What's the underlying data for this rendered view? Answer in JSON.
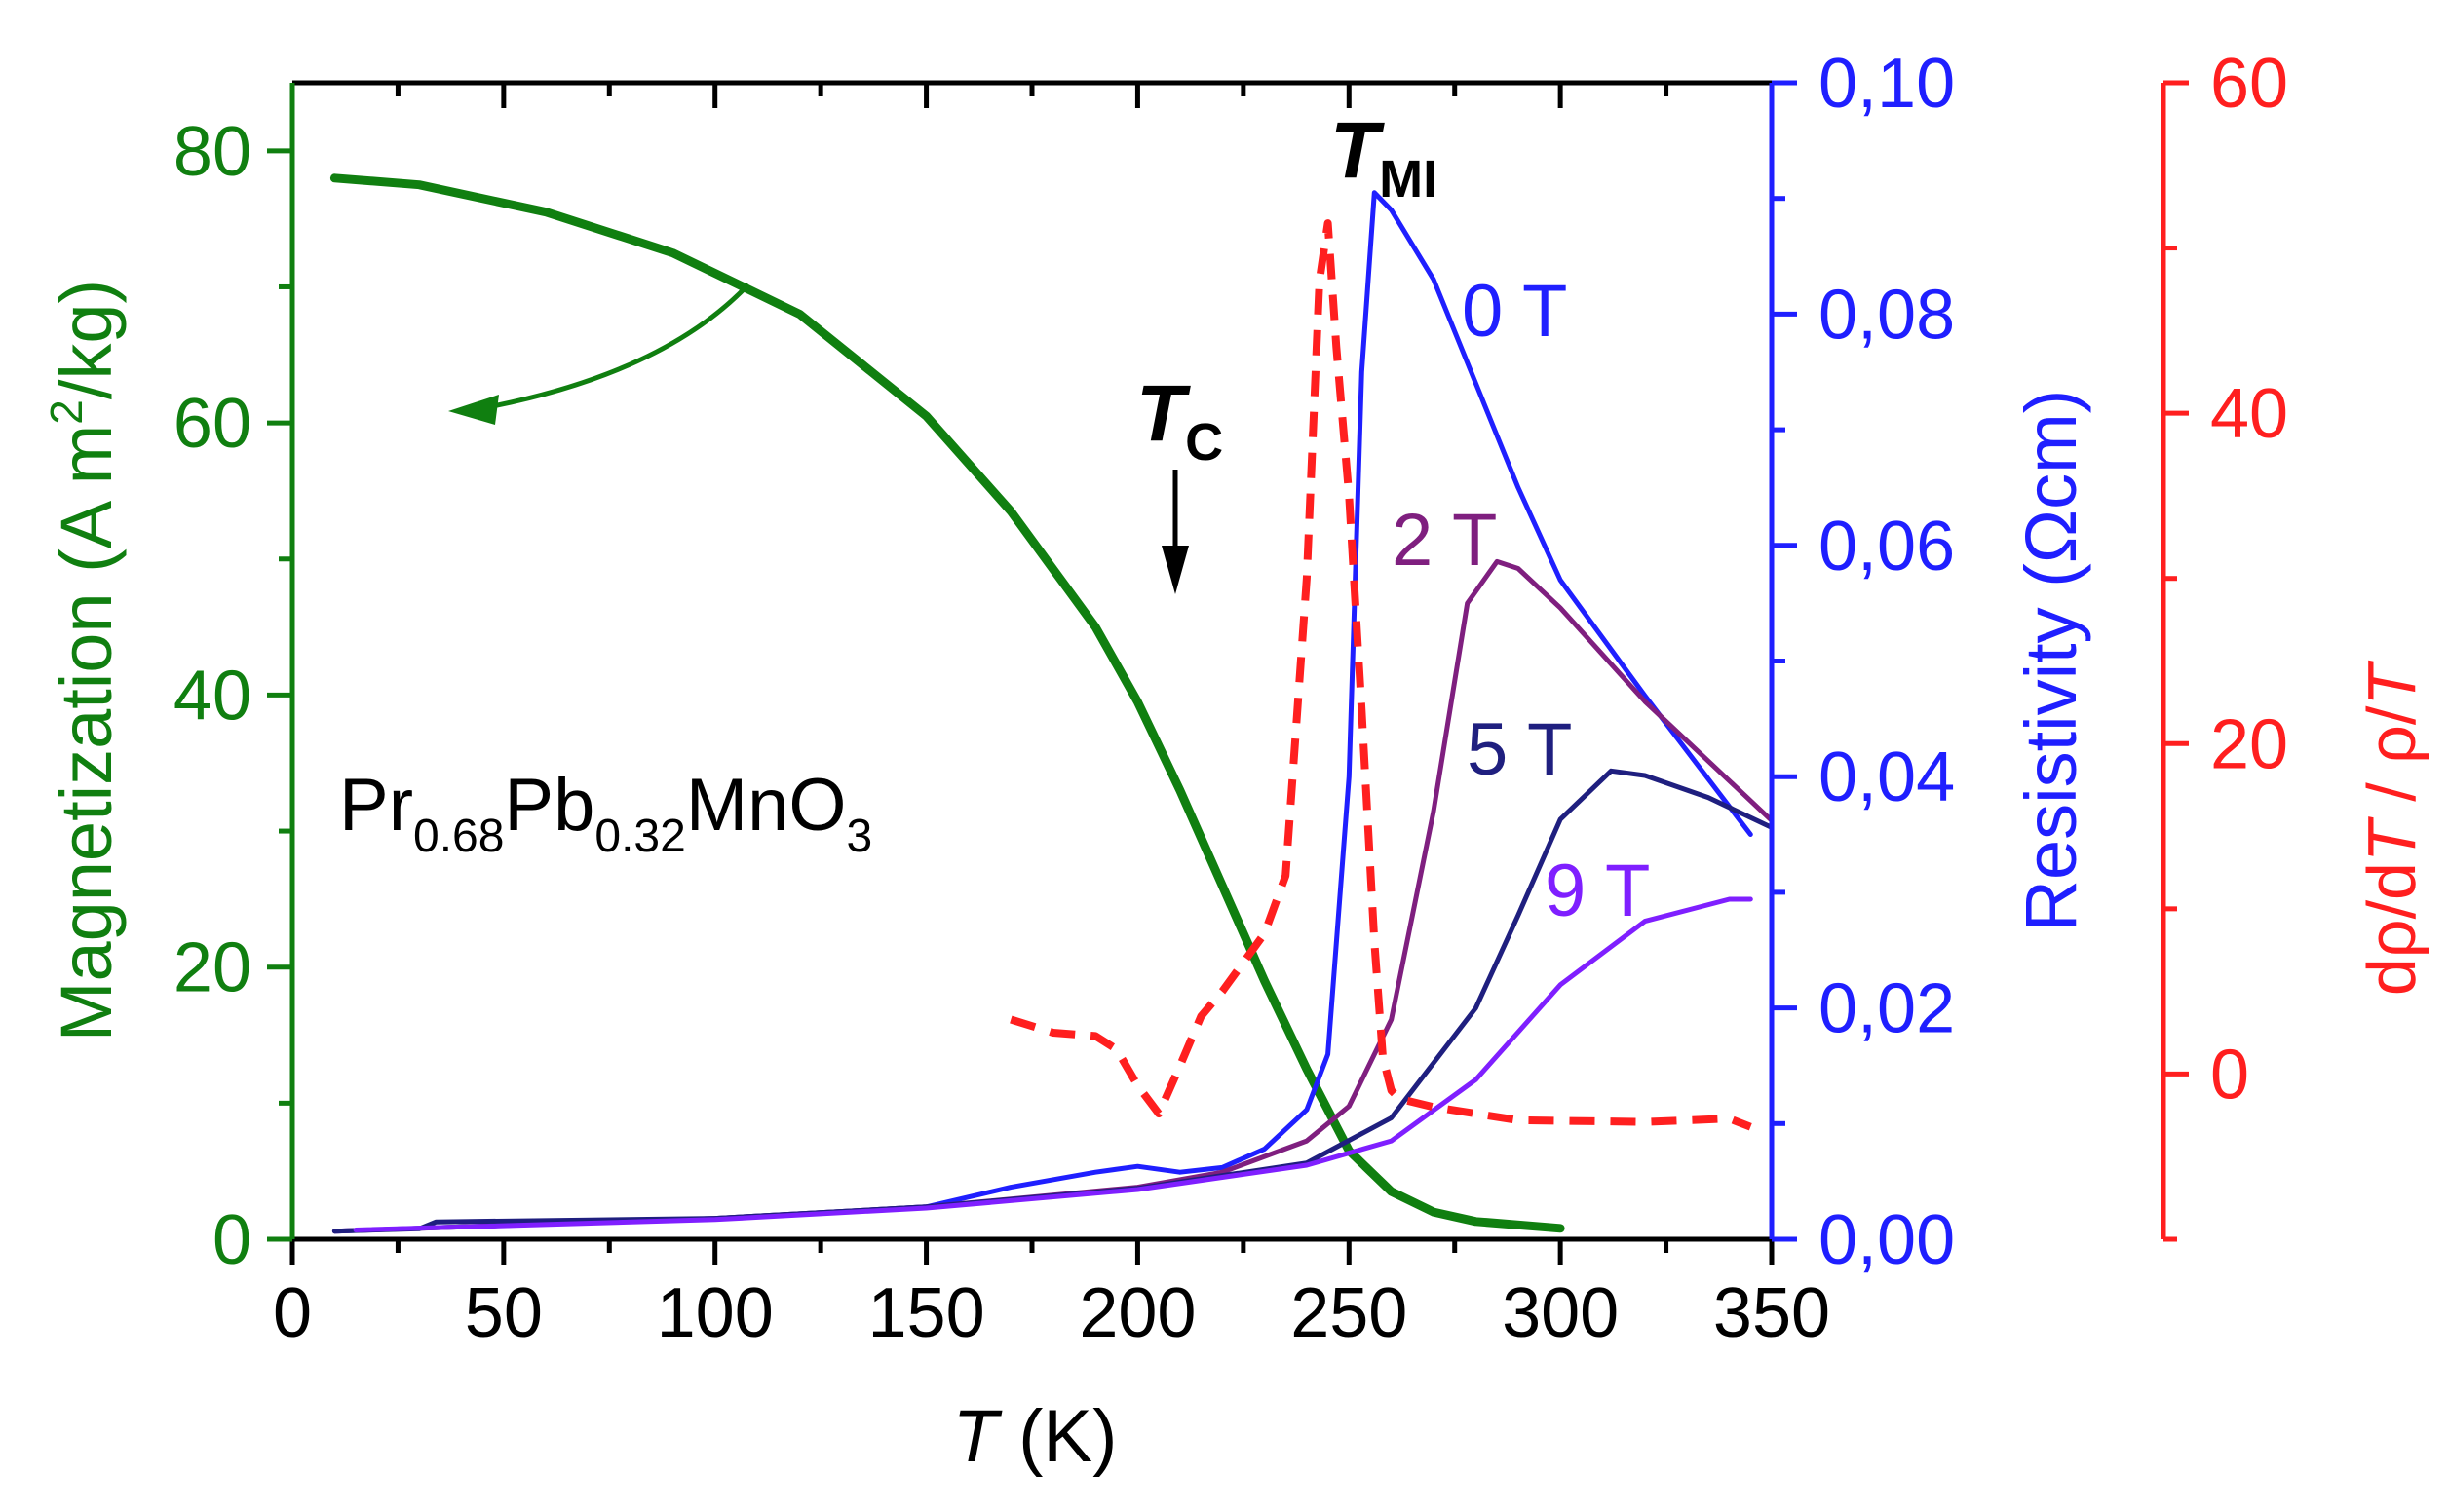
{
  "chart_data": {
    "type": "line",
    "x_axis": {
      "label_italic": "T",
      "label_rest": " (K)",
      "range": [
        0,
        350
      ],
      "ticks": [
        "0",
        "50",
        "100",
        "150",
        "200",
        "250",
        "300",
        "350"
      ]
    },
    "y_axes": [
      {
        "id": "magnetization",
        "side": "left",
        "color": "#107f10",
        "label_parts": [
          "Magnetization (A m",
          "2",
          "/kg)"
        ],
        "range": [
          0,
          85
        ],
        "ticks": [
          "0",
          "20",
          "40",
          "60",
          "80"
        ]
      },
      {
        "id": "resistivity",
        "side": "right-inner",
        "color": "#1f1fff",
        "label_parts": [
          "Resistivity (",
          "Ω",
          "cm)"
        ],
        "range": [
          0,
          0.1
        ],
        "ticks": [
          "0,00",
          "0,02",
          "0,04",
          "0,06",
          "0,08",
          "0,10"
        ]
      },
      {
        "id": "drho",
        "side": "right-outer",
        "color": "#ff1f1f",
        "label_parts": [
          "dρ/d",
          "T",
          " / ρ/",
          "T"
        ],
        "range": [
          -10,
          60
        ],
        "ticks": [
          "0",
          "20",
          "40",
          "60"
        ]
      }
    ],
    "series": [
      {
        "axis": "magnetization",
        "color": "#107f10",
        "style": "solid",
        "width": 9,
        "x": [
          10,
          30,
          60,
          90,
          120,
          150,
          170,
          190,
          200,
          210,
          220,
          230,
          240,
          250,
          260,
          270,
          280,
          300
        ],
        "y": [
          78,
          77.5,
          75.5,
          72.5,
          68,
          60.5,
          53.5,
          45,
          39.5,
          33,
          26,
          19,
          12.5,
          6.5,
          3.5,
          2,
          1.3,
          0.8
        ]
      },
      {
        "name": "0 T",
        "axis": "resistivity",
        "color": "#1f1fff",
        "style": "solid",
        "width": 5,
        "x": [
          10,
          50,
          100,
          150,
          170,
          190,
          200,
          210,
          220,
          230,
          240,
          245,
          250,
          253,
          256,
          260,
          270,
          280,
          290,
          300,
          320,
          345
        ],
        "y": [
          0.0007,
          0.0012,
          0.0018,
          0.0028,
          0.0045,
          0.0058,
          0.0063,
          0.0058,
          0.0062,
          0.0078,
          0.0112,
          0.016,
          0.04,
          0.075,
          0.0905,
          0.089,
          0.083,
          0.074,
          0.065,
          0.057,
          0.047,
          0.035
        ]
      },
      {
        "name": "2 T",
        "axis": "resistivity",
        "color": "#7f1f7f",
        "style": "solid",
        "width": 5,
        "x": [
          10,
          100,
          150,
          200,
          220,
          240,
          250,
          260,
          270,
          278,
          285,
          290,
          300,
          320,
          350
        ],
        "y": [
          0.0007,
          0.0018,
          0.0028,
          0.0045,
          0.0058,
          0.0085,
          0.0115,
          0.019,
          0.037,
          0.055,
          0.0586,
          0.058,
          0.0546,
          0.0465,
          0.0362
        ]
      },
      {
        "name": "5 T",
        "axis": "resistivity",
        "color": "#1f1f7f",
        "style": "solid",
        "width": 5,
        "x": [
          10,
          30,
          34,
          100,
          150,
          200,
          240,
          260,
          280,
          290,
          300,
          312,
          320,
          335,
          350
        ],
        "y": [
          0.0007,
          0.0009,
          0.0015,
          0.0018,
          0.0028,
          0.0044,
          0.0066,
          0.0105,
          0.02,
          0.028,
          0.0363,
          0.0405,
          0.0401,
          0.0382,
          0.0356
        ]
      },
      {
        "name": "9 T",
        "axis": "resistivity",
        "color": "#7f1fff",
        "style": "solid",
        "width": 5,
        "x": [
          15,
          100,
          150,
          200,
          240,
          260,
          280,
          300,
          320,
          340,
          345
        ],
        "y": [
          0.0008,
          0.0017,
          0.0027,
          0.0043,
          0.0064,
          0.0085,
          0.0138,
          0.022,
          0.0275,
          0.0294,
          0.0294
        ]
      },
      {
        "axis": "drho",
        "color": "#ff1f1f",
        "style": "dashed",
        "width": 8,
        "x": [
          170,
          180,
          190,
          195,
          200,
          205,
          210,
          215,
          220,
          230,
          235,
          240,
          243,
          245,
          247,
          250,
          253,
          256,
          258,
          260,
          262,
          270,
          290,
          320,
          340,
          345
        ],
        "y": [
          3.3,
          2.5,
          2.3,
          1.5,
          -0.7,
          -2.4,
          0.5,
          3.5,
          5,
          8.5,
          12,
          30,
          48,
          51.5,
          44,
          35,
          22,
          8,
          1,
          -1,
          -1.5,
          -2,
          -2.8,
          -2.9,
          -2.7,
          -3.2
        ]
      }
    ],
    "annotations": {
      "compound": {
        "p1": "Pr",
        "s1": "0.68",
        "p2": "Pb",
        "s2": "0.32",
        "p3": "MnO",
        "s3": "3"
      },
      "tc": {
        "main": "T",
        "sub": "C"
      },
      "tmi": {
        "main": "T",
        "sub": "MI"
      },
      "field_labels": [
        {
          "text": "0 T",
          "color": "#1f1fff"
        },
        {
          "text": "2 T",
          "color": "#7f1f7f"
        },
        {
          "text": "5 T",
          "color": "#1f1f7f"
        },
        {
          "text": "9 T",
          "color": "#7f1fff"
        }
      ]
    }
  }
}
